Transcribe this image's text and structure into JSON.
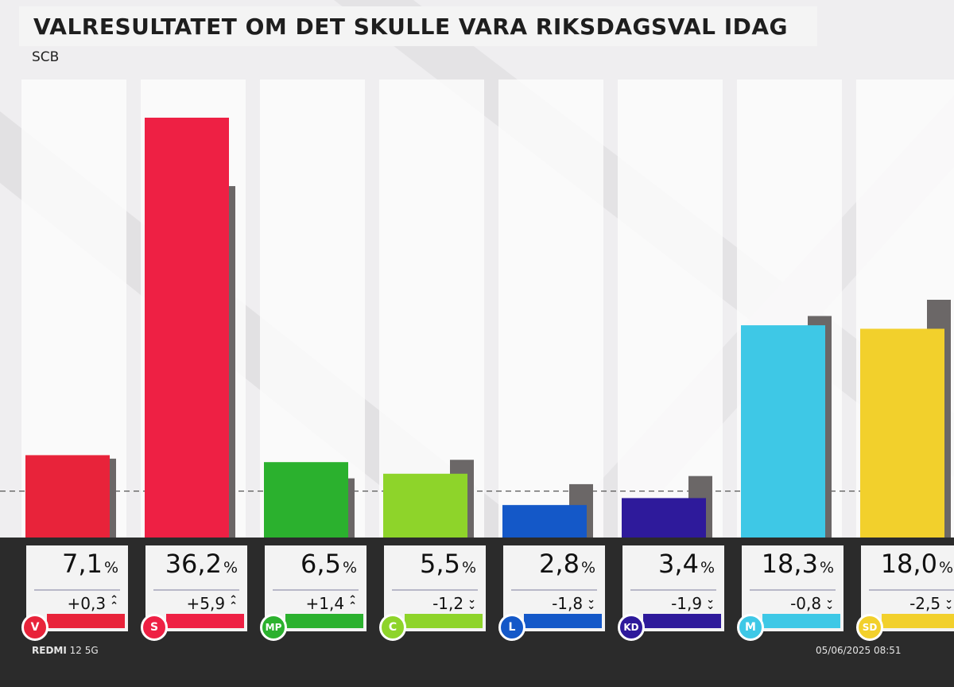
{
  "title": "VALRESULTATET OM DET SKULLE VARA RIKSDAGSVAL IDAG",
  "source": "SCB",
  "footer": {
    "device_brand": "REDMI",
    "device_model": "12 5G",
    "timestamp": "05/06/2025 08:51"
  },
  "colors": {
    "background": "#2b2b2b",
    "bar_area": "#f0eff1",
    "previous": "#6b6767",
    "card": "#f3f3f3"
  },
  "chart_data": {
    "type": "bar",
    "title": "VALRESULTATET OM DET SKULLE VARA RIKSDAGSVAL IDAG",
    "categories": [
      "V",
      "S",
      "MP",
      "C",
      "L",
      "KD",
      "M",
      "SD"
    ],
    "series": [
      {
        "values": [
          7.1,
          36.2,
          6.5,
          5.5,
          2.8,
          3.4,
          18.3,
          18.0
        ]
      },
      {
        "values": [
          6.8,
          30.3,
          5.1,
          6.7,
          4.6,
          5.3,
          19.1,
          20.5
        ]
      }
    ],
    "labels": [
      "7,1",
      "36,2",
      "6,5",
      "5,5",
      "2,8",
      "3,4",
      "18,3",
      "18,0"
    ],
    "changes": [
      "+0,3",
      "+5,9",
      "+1,4",
      "-1,2",
      "-1,8",
      "-1,9",
      "-0,8",
      "-2,5"
    ],
    "directions": [
      "up",
      "up",
      "up",
      "down",
      "down",
      "down",
      "down",
      "down"
    ],
    "percent_sign": "%",
    "party_colors": [
      "#e8233a",
      "#ee2044",
      "#2bb12e",
      "#8ed42a",
      "#1458c8",
      "#2e1a9b",
      "#3ec8e6",
      "#f2d02c"
    ],
    "ylim": [
      0,
      40
    ],
    "threshold": 4,
    "grid": false,
    "legend": "none"
  }
}
